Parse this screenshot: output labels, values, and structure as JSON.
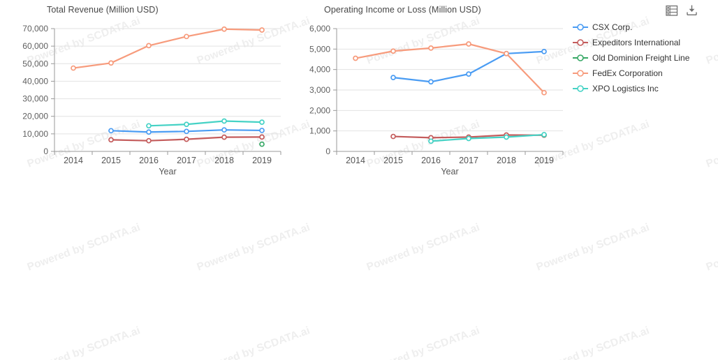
{
  "watermark": {
    "text": "Powered by SCDATA.ai"
  },
  "toolbar": {
    "data_view_tooltip": "data view",
    "download_tooltip": "save as image"
  },
  "legend": {
    "position": "right",
    "items": [
      {
        "label": "CSX Corp.",
        "color": "#4a9cf3"
      },
      {
        "label": "Expeditors International",
        "color": "#c45c5c"
      },
      {
        "label": "Old Dominion Freight Line",
        "color": "#36a865"
      },
      {
        "label": "FedEx Corporation",
        "color": "#f79b7c"
      },
      {
        "label": "XPO Logistics Inc",
        "color": "#45d2c5"
      }
    ]
  },
  "chart_data": [
    {
      "type": "line",
      "title": "Total Revenue (Million USD)",
      "xlabel": "Year",
      "ylabel": "",
      "categories": [
        "2014",
        "2015",
        "2016",
        "2017",
        "2018",
        "2019"
      ],
      "ylim": [
        0,
        70000
      ],
      "ytick_step": 10000,
      "grid": true,
      "legend_position": "right",
      "marker": "hollow-circle",
      "series": [
        {
          "name": "CSX Corp.",
          "color": "#4a9cf3",
          "values": [
            null,
            11800,
            11050,
            11400,
            12250,
            11950
          ]
        },
        {
          "name": "Expeditors International",
          "color": "#c45c5c",
          "values": [
            null,
            6600,
            6100,
            6900,
            8100,
            8200
          ]
        },
        {
          "name": "Old Dominion Freight Line",
          "color": "#36a865",
          "values": [
            null,
            null,
            null,
            null,
            null,
            4100
          ]
        },
        {
          "name": "FedEx Corporation",
          "color": "#f79b7c",
          "values": [
            47500,
            50400,
            60300,
            65500,
            69700,
            69200
          ]
        },
        {
          "name": "XPO Logistics Inc",
          "color": "#45d2c5",
          "values": [
            null,
            null,
            14600,
            15400,
            17300,
            16650
          ]
        }
      ]
    },
    {
      "type": "line",
      "title": "Operating Income or Loss (Million USD)",
      "xlabel": "Year",
      "ylabel": "",
      "categories": [
        "2014",
        "2015",
        "2016",
        "2017",
        "2018",
        "2019"
      ],
      "ylim": [
        0,
        6000
      ],
      "ytick_step": 1000,
      "grid": true,
      "legend_position": "right",
      "marker": "hollow-circle",
      "series": [
        {
          "name": "CSX Corp.",
          "color": "#4a9cf3",
          "values": [
            null,
            3610,
            3400,
            3780,
            4780,
            4880
          ]
        },
        {
          "name": "Expeditors International",
          "color": "#c45c5c",
          "values": [
            null,
            730,
            670,
            700,
            800,
            790
          ]
        },
        {
          "name": "Old Dominion Freight Line",
          "color": "#36a865",
          "values": [
            null,
            null,
            null,
            null,
            null,
            810
          ]
        },
        {
          "name": "FedEx Corporation",
          "color": "#f79b7c",
          "values": [
            4550,
            4900,
            5050,
            5250,
            4780,
            2870
          ]
        },
        {
          "name": "XPO Logistics Inc",
          "color": "#45d2c5",
          "values": [
            null,
            null,
            500,
            630,
            700,
            820
          ]
        }
      ]
    }
  ]
}
